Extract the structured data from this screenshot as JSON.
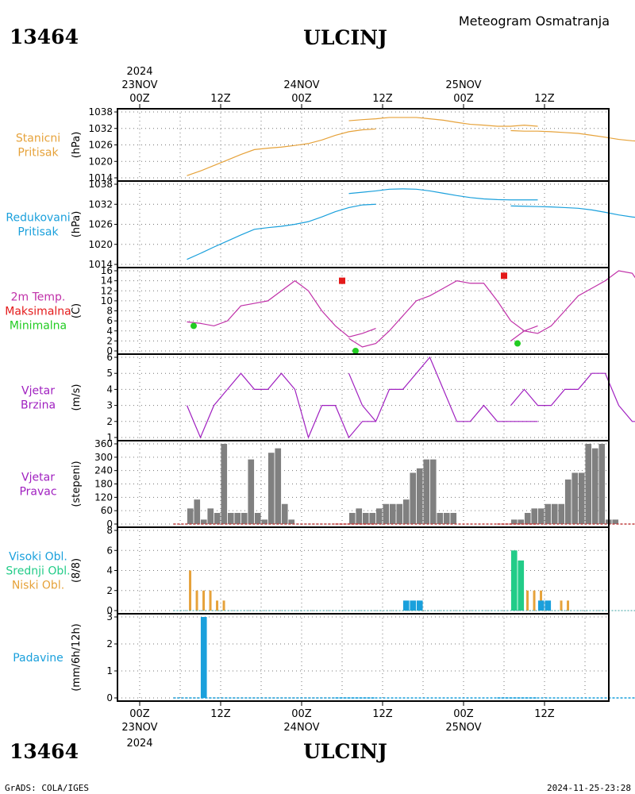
{
  "header": {
    "station_id": "13464",
    "station_name": "ULCINJ",
    "product": "Meteogram Osmatranja"
  },
  "footer": {
    "station_id": "13464",
    "station_name": "ULCINJ",
    "credit": "GrADS: COLA/IGES",
    "timestamp": "2024-11-25-23:28"
  },
  "time_axis": {
    "year": "2024",
    "top_labels": [
      {
        "hour": "00Z",
        "date": "23NOV"
      },
      {
        "hour": "12Z",
        "date": ""
      },
      {
        "hour": "00Z",
        "date": "24NOV"
      },
      {
        "hour": "12Z",
        "date": ""
      },
      {
        "hour": "00Z",
        "date": "25NOV"
      },
      {
        "hour": "12Z",
        "date": ""
      }
    ],
    "bottom_labels": [
      {
        "hour": "00Z",
        "date": "23NOV"
      },
      {
        "hour": "12Z",
        "date": ""
      },
      {
        "hour": "00Z",
        "date": "24NOV"
      },
      {
        "hour": "12Z",
        "date": ""
      },
      {
        "hour": "00Z",
        "date": "25NOV"
      },
      {
        "hour": "12Z",
        "date": ""
      }
    ]
  },
  "colors": {
    "station_pressure": "#e6a23a",
    "reduced_pressure": "#1aa0dc",
    "temperature": "#c030a8",
    "tmax": "#e41a1a",
    "tmin": "#22cc22",
    "wind_speed": "#a020c0",
    "wind_dir": "#808080",
    "cloud_high": "#1aa0dc",
    "cloud_mid": "#22cc88",
    "cloud_low": "#e6a23a",
    "precip": "#1aa0dc"
  },
  "chart_data": [
    {
      "type": "line",
      "labels": [
        "Stanicni",
        "Pritisak"
      ],
      "unit": "(hPa)",
      "ylim": [
        1014,
        1038
      ],
      "yticks": [
        "1014",
        "1020",
        "1026",
        "1032",
        "1038"
      ],
      "segments": [
        {
          "x": [
            7,
            9,
            11,
            13,
            15,
            17,
            19,
            21,
            23,
            25,
            27,
            29,
            31,
            33,
            35
          ],
          "y": [
            1014.8,
            1016.5,
            1018.5,
            1020.5,
            1022.5,
            1024.3,
            1024.8,
            1025.2,
            1025.8,
            1026.5,
            1027.8,
            1029.5,
            1030.8,
            1031.5,
            1031.8
          ]
        },
        {
          "x": [
            31,
            33,
            35,
            37,
            39,
            41,
            43,
            45,
            47,
            49,
            51,
            53,
            55,
            57,
            59
          ],
          "y": [
            1034.8,
            1035.2,
            1035.5,
            1036.0,
            1036.0,
            1036.0,
            1035.5,
            1035.0,
            1034.2,
            1033.5,
            1033.2,
            1032.8,
            1032.8,
            1033.2,
            1032.8
          ]
        },
        {
          "x": [
            55,
            57,
            59,
            61,
            63,
            65,
            67,
            69,
            71,
            73,
            75,
            77,
            79,
            81,
            83
          ],
          "y": [
            1031.2,
            1031.0,
            1031.0,
            1030.8,
            1030.5,
            1030.2,
            1029.5,
            1028.8,
            1028.0,
            1027.5,
            1027.2,
            1027.0,
            1026.8,
            1026.8,
            1026.8
          ]
        }
      ]
    },
    {
      "type": "line",
      "labels": [
        "Redukovani",
        "Pritisak"
      ],
      "unit": "(hPa)",
      "ylim": [
        1014,
        1038
      ],
      "yticks": [
        "1014",
        "1020",
        "1026",
        "1032",
        "1038"
      ],
      "segments": [
        {
          "x": [
            7,
            9,
            11,
            13,
            15,
            17,
            19,
            21,
            23,
            25,
            27,
            29,
            31,
            33,
            35
          ],
          "y": [
            1015.5,
            1017.3,
            1019.2,
            1021.0,
            1022.8,
            1024.5,
            1025.0,
            1025.4,
            1026.0,
            1026.8,
            1028.2,
            1029.8,
            1031.0,
            1031.8,
            1032.0
          ]
        },
        {
          "x": [
            31,
            33,
            35,
            37,
            39,
            41,
            43,
            45,
            47,
            49,
            51,
            53,
            55,
            57,
            59
          ],
          "y": [
            1035.2,
            1035.6,
            1036.0,
            1036.5,
            1036.6,
            1036.5,
            1036.0,
            1035.3,
            1034.6,
            1034.0,
            1033.6,
            1033.4,
            1033.3,
            1033.3,
            1033.3
          ]
        },
        {
          "x": [
            55,
            57,
            59,
            61,
            63,
            65,
            67,
            69,
            71,
            73,
            75,
            77,
            79,
            81,
            83
          ],
          "y": [
            1031.5,
            1031.4,
            1031.3,
            1031.2,
            1031.0,
            1030.8,
            1030.3,
            1029.6,
            1028.8,
            1028.2,
            1027.8,
            1027.6,
            1027.5,
            1027.5,
            1027.6
          ]
        }
      ]
    },
    {
      "type": "line",
      "labels": [
        "2m Temp.",
        "Maksimalna",
        "Minimalna"
      ],
      "unit": "(C)",
      "ylim": [
        0,
        16
      ],
      "yticks": [
        "0",
        "2",
        "4",
        "6",
        "8",
        "10",
        "12",
        "14",
        "16"
      ],
      "segments": [
        {
          "x": [
            7,
            9,
            11,
            13,
            15,
            17,
            19,
            21,
            23,
            25,
            27,
            29,
            31,
            33,
            35
          ],
          "y": [
            5.8,
            5.5,
            5.0,
            6.0,
            9.0,
            9.5,
            10.0,
            12.0,
            14.0,
            12.0,
            8.0,
            5.0,
            2.8,
            3.5,
            4.5
          ]
        },
        {
          "x": [
            31,
            33,
            35,
            37,
            39,
            41,
            43,
            45,
            47,
            49,
            51,
            53,
            55,
            57,
            59
          ],
          "y": [
            2.5,
            0.8,
            1.5,
            4.0,
            7.0,
            10.0,
            11.0,
            12.5,
            14.0,
            13.5,
            13.5,
            10.0,
            6.0,
            4.0,
            5.0
          ]
        },
        {
          "x": [
            55,
            57,
            59,
            61,
            63,
            65,
            67,
            69,
            71,
            73,
            75,
            77,
            79,
            81,
            83
          ],
          "y": [
            2.0,
            4.0,
            3.5,
            5.0,
            8.0,
            11.0,
            12.5,
            14.0,
            16.0,
            15.5,
            11.5,
            7.0,
            6.5,
            5.0,
            5.0
          ]
        }
      ],
      "tmax": [
        {
          "x": 30,
          "y": 14
        },
        {
          "x": 54,
          "y": 15
        },
        {
          "x": 78,
          "y": 16
        }
      ],
      "tmin": [
        {
          "x": 8,
          "y": 5
        },
        {
          "x": 32,
          "y": 0
        },
        {
          "x": 56,
          "y": 1.5
        }
      ]
    },
    {
      "type": "line",
      "labels": [
        "Vjetar",
        "Brzina"
      ],
      "unit": "(m/s)",
      "ylim": [
        1,
        6
      ],
      "yticks": [
        "1",
        "2",
        "3",
        "4",
        "5",
        "6"
      ],
      "segments": [
        {
          "x": [
            7,
            9,
            11,
            13,
            15,
            17,
            19,
            21,
            23,
            25,
            27,
            29,
            31,
            33,
            35
          ],
          "y": [
            3,
            1,
            3,
            4,
            5,
            4,
            4,
            5,
            4,
            1,
            3,
            3,
            1,
            2,
            2
          ]
        },
        {
          "x": [
            31,
            33,
            35,
            37,
            39,
            41,
            43,
            45,
            47,
            49,
            51,
            53,
            55,
            57,
            59
          ],
          "y": [
            5,
            3,
            2,
            4,
            4,
            5,
            6,
            4,
            2,
            2,
            3,
            2,
            2,
            2,
            2
          ]
        },
        {
          "x": [
            55,
            57,
            59,
            61,
            63,
            65,
            67,
            69,
            71,
            73,
            75,
            77,
            79,
            81,
            83
          ],
          "y": [
            3,
            4,
            3,
            3,
            4,
            4,
            5,
            5,
            3,
            2,
            2,
            2,
            1,
            2,
            2
          ]
        }
      ]
    },
    {
      "type": "bar",
      "labels": [
        "Vjetar",
        "Pravac"
      ],
      "unit": "(stepeni)",
      "ylim": [
        0,
        360
      ],
      "yticks": [
        "0",
        "60",
        "120",
        "180",
        "240",
        "300",
        "360"
      ],
      "x": [
        7,
        8,
        9,
        10,
        11,
        12,
        13,
        14,
        15,
        16,
        17,
        18,
        19,
        20,
        21,
        22,
        31,
        32,
        33,
        34,
        35,
        36,
        37,
        38,
        39,
        40,
        41,
        42,
        43,
        44,
        45,
        46,
        55,
        56,
        57,
        58,
        59,
        60,
        61,
        62,
        63,
        64,
        65,
        66,
        67,
        68,
        69,
        70
      ],
      "values": [
        70,
        110,
        20,
        70,
        50,
        360,
        50,
        50,
        50,
        290,
        50,
        20,
        320,
        340,
        90,
        20,
        50,
        70,
        50,
        50,
        70,
        90,
        90,
        90,
        110,
        230,
        250,
        290,
        290,
        50,
        50,
        50,
        20,
        20,
        50,
        70,
        70,
        90,
        90,
        90,
        200,
        230,
        230,
        360,
        340,
        360,
        20,
        20
      ]
    },
    {
      "type": "bar",
      "labels": [
        "Visoki Obl.",
        "Srednji Obl.",
        "Niski Obl."
      ],
      "unit": "(8/8)",
      "ylim": [
        0,
        8
      ],
      "yticks": [
        "0",
        "2",
        "4",
        "6",
        "8"
      ],
      "low": {
        "x": [
          7,
          8,
          9,
          10,
          11,
          12,
          56,
          57,
          58,
          59,
          62,
          63
        ],
        "values": [
          4,
          2,
          2,
          2,
          1,
          1,
          3,
          2,
          2,
          2,
          1,
          1
        ]
      },
      "mid": {
        "x": [
          55,
          56
        ],
        "values": [
          6,
          5
        ]
      },
      "high": {
        "x": [
          39,
          40,
          41,
          59,
          60
        ],
        "values": [
          1,
          1,
          1,
          1,
          1
        ]
      }
    },
    {
      "type": "bar",
      "labels": [
        "Padavine"
      ],
      "unit": "(mm/6h/12h)",
      "ylim": [
        0,
        3
      ],
      "yticks": [
        "0",
        "1",
        "2",
        "3"
      ],
      "x": [
        9
      ],
      "values": [
        3
      ]
    }
  ]
}
